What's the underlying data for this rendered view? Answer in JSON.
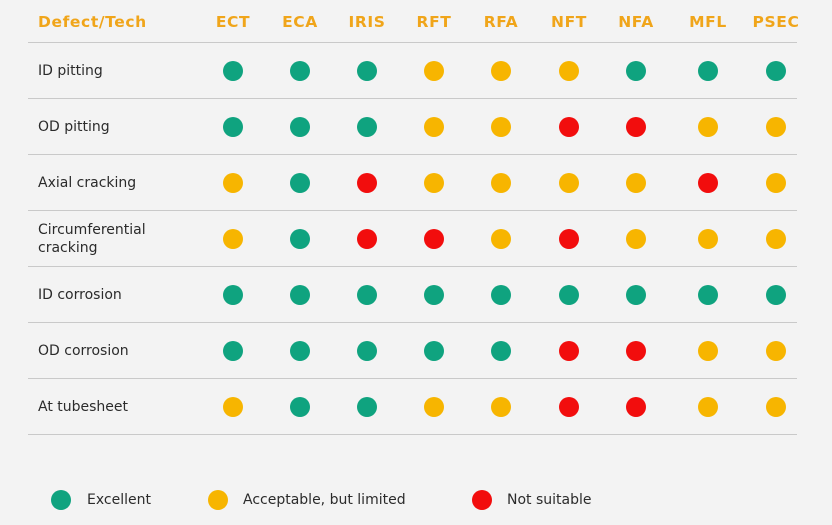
{
  "colors": {
    "header_text": "#f0a51a",
    "excellent": "#0fa37f",
    "acceptable": "#f7b500",
    "not_suitable": "#f20d0d",
    "background": "#f3f3f3",
    "divider": "#c9c9c9"
  },
  "table": {
    "corner_header": "Defect/Tech",
    "columns": [
      "ECT",
      "ECA",
      "IRIS",
      "RFT",
      "RFA",
      "NFT",
      "NFA",
      "MFL",
      "PSEC"
    ],
    "rows": [
      {
        "label": "ID pitting",
        "ratings": [
          "excellent",
          "excellent",
          "excellent",
          "acceptable",
          "acceptable",
          "acceptable",
          "excellent",
          "excellent",
          "excellent"
        ]
      },
      {
        "label": "OD pitting",
        "ratings": [
          "excellent",
          "excellent",
          "excellent",
          "acceptable",
          "acceptable",
          "not_suitable",
          "not_suitable",
          "acceptable",
          "acceptable"
        ]
      },
      {
        "label": "Axial cracking",
        "ratings": [
          "acceptable",
          "excellent",
          "not_suitable",
          "acceptable",
          "acceptable",
          "acceptable",
          "acceptable",
          "not_suitable",
          "acceptable"
        ]
      },
      {
        "label": "Circumferential cracking",
        "ratings": [
          "acceptable",
          "excellent",
          "not_suitable",
          "not_suitable",
          "acceptable",
          "not_suitable",
          "acceptable",
          "acceptable",
          "acceptable"
        ]
      },
      {
        "label": "ID corrosion",
        "ratings": [
          "excellent",
          "excellent",
          "excellent",
          "excellent",
          "excellent",
          "excellent",
          "excellent",
          "excellent",
          "excellent"
        ]
      },
      {
        "label": "OD corrosion",
        "ratings": [
          "excellent",
          "excellent",
          "excellent",
          "excellent",
          "excellent",
          "not_suitable",
          "not_suitable",
          "acceptable",
          "acceptable"
        ]
      },
      {
        "label": "At tubesheet",
        "ratings": [
          "acceptable",
          "excellent",
          "excellent",
          "acceptable",
          "acceptable",
          "not_suitable",
          "not_suitable",
          "acceptable",
          "acceptable"
        ]
      }
    ]
  },
  "legend": [
    {
      "key": "excellent",
      "label": "Excellent"
    },
    {
      "key": "acceptable",
      "label": "Acceptable, but limited"
    },
    {
      "key": "not_suitable",
      "label": "Not suitable"
    }
  ]
}
